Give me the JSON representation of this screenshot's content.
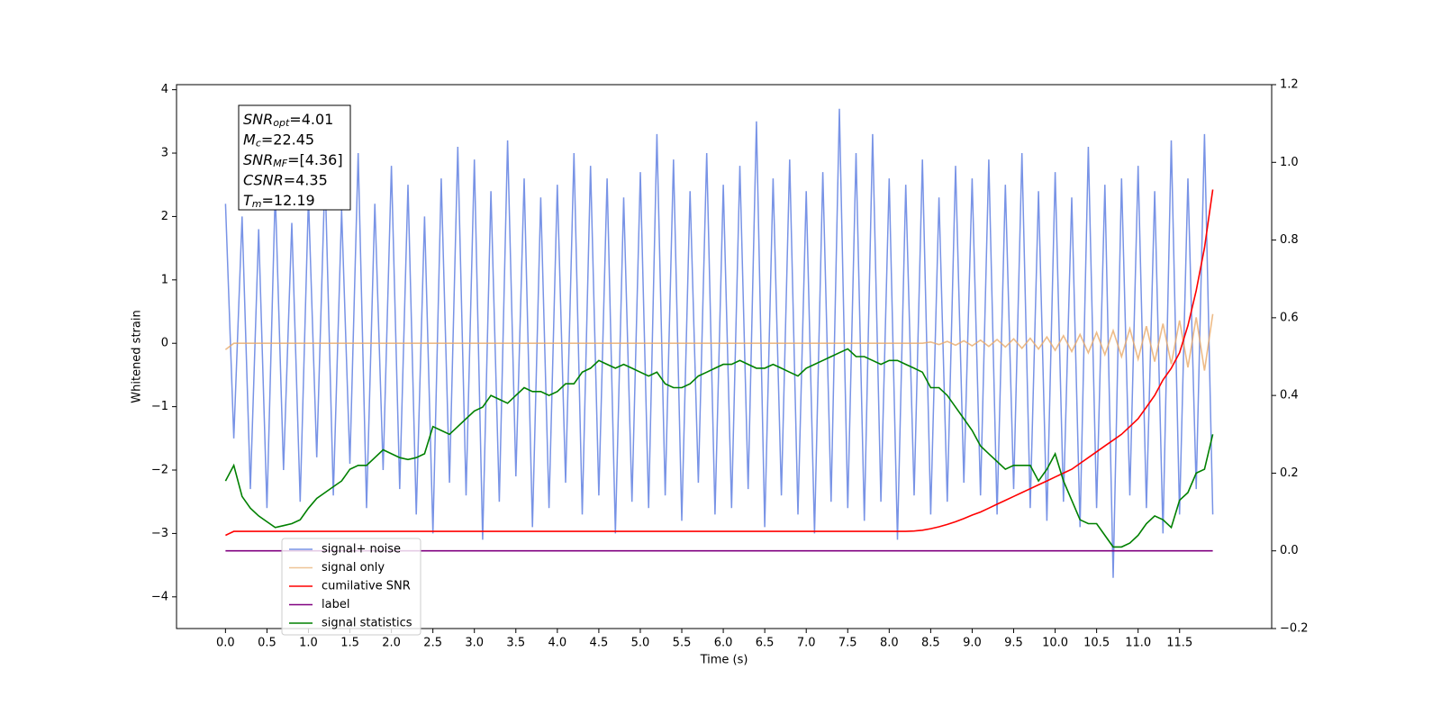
{
  "chart_data": {
    "type": "line",
    "xlabel": "Time (s)",
    "ylabel": "Whitened strain",
    "xlim": [
      -0.59,
      12.61
    ],
    "ylim": [
      -4.5,
      4.08
    ],
    "y2lim": [
      -0.2,
      1.2
    ],
    "xticks": [
      {
        "value": 0,
        "label": "0.0"
      },
      0.5,
      {
        "value": 1,
        "label": "1.0"
      },
      1.5,
      {
        "value": 2,
        "label": "2.0"
      },
      2.5,
      {
        "value": 3,
        "label": "3.0"
      },
      3.5,
      {
        "value": 4,
        "label": "4.0"
      },
      4.5,
      {
        "value": 5,
        "label": "5.0"
      },
      5.5,
      {
        "value": 6,
        "label": "6.0"
      },
      6.5,
      {
        "value": 7,
        "label": "7.0"
      },
      7.5,
      {
        "value": 8,
        "label": "8.0"
      },
      8.5,
      {
        "value": 9,
        "label": "9.0"
      },
      9.5,
      {
        "value": 10,
        "label": "10.0"
      },
      10.5,
      {
        "value": 11,
        "label": "11.0"
      },
      11.5
    ],
    "yticks": [
      4,
      3,
      2,
      1,
      0,
      {
        "value": -1,
        "label": "−1"
      },
      {
        "value": -2,
        "label": "−2"
      },
      {
        "value": -3,
        "label": "−3"
      },
      {
        "value": -4,
        "label": "−4"
      }
    ],
    "y2ticks": [
      1.2,
      {
        "value": 1,
        "label": "1.0"
      },
      0.8,
      0.6,
      0.4,
      0.2,
      {
        "value": 0,
        "label": "0.0"
      },
      {
        "value": -0.2,
        "label": "−0.2"
      }
    ],
    "legend": "lower left",
    "annotation": [
      {
        "name": "SNR",
        "sub": "opt",
        "text": "=4.01"
      },
      {
        "name": "M",
        "sub": "c",
        "text": "=22.45"
      },
      {
        "name": "SNR",
        "sub": "MF",
        "text": "=[4.36]"
      },
      {
        "name": "CSNR",
        "sub": "",
        "text": "=4.35"
      },
      {
        "name": "T",
        "sub": "m",
        "text": "=12.19"
      }
    ],
    "x": [
      0,
      0.1,
      0.2,
      0.3,
      0.4,
      0.5,
      0.6,
      0.7,
      0.8,
      0.9,
      1,
      1.1,
      1.2,
      1.3,
      1.4,
      1.5,
      1.6,
      1.7,
      1.8,
      1.9,
      2,
      2.1,
      2.2,
      2.3,
      2.4,
      2.5,
      2.6,
      2.7,
      2.8,
      2.9,
      3,
      3.1,
      3.2,
      3.3,
      3.4,
      3.5,
      3.6,
      3.7,
      3.8,
      3.9,
      4,
      4.1,
      4.2,
      4.3,
      4.4,
      4.5,
      4.6,
      4.7,
      4.8,
      4.9,
      5,
      5.1,
      5.2,
      5.3,
      5.4,
      5.5,
      5.6,
      5.7,
      5.8,
      5.9,
      6,
      6.1,
      6.2,
      6.3,
      6.4,
      6.5,
      6.6,
      6.7,
      6.8,
      6.9,
      7,
      7.1,
      7.2,
      7.3,
      7.4,
      7.5,
      7.6,
      7.7,
      7.8,
      7.9,
      8,
      8.1,
      8.2,
      8.3,
      8.4,
      8.5,
      8.6,
      8.7,
      8.8,
      8.9,
      9,
      9.1,
      9.2,
      9.3,
      9.4,
      9.5,
      9.6,
      9.7,
      9.8,
      9.9,
      10,
      10.1,
      10.2,
      10.3,
      10.4,
      10.5,
      10.6,
      10.7,
      10.8,
      10.9,
      11,
      11.1,
      11.2,
      11.3,
      11.4,
      11.5,
      11.6,
      11.7,
      11.8,
      11.9
    ],
    "series": [
      {
        "name": "signal+ noise",
        "color": "#7893e6",
        "values": [
          2.2,
          -1.5,
          2.0,
          -2.3,
          1.8,
          -2.6,
          2.4,
          -2.0,
          1.9,
          -2.5,
          2.3,
          -1.8,
          2.7,
          -2.4,
          2.1,
          -1.9,
          3.0,
          -2.6,
          2.2,
          -2.0,
          2.8,
          -2.3,
          2.5,
          -2.7,
          2.0,
          -3.0,
          2.6,
          -2.2,
          3.1,
          -2.4,
          2.9,
          -3.1,
          2.4,
          -2.5,
          3.2,
          -2.1,
          2.6,
          -2.9,
          2.3,
          -2.6,
          2.5,
          -2.2,
          3.0,
          -2.7,
          2.8,
          -2.4,
          2.6,
          -3.0,
          2.3,
          -2.5,
          2.7,
          -2.6,
          3.3,
          -2.4,
          2.9,
          -2.8,
          2.4,
          -2.2,
          3.0,
          -2.7,
          2.5,
          -2.6,
          2.8,
          -2.3,
          3.5,
          -2.9,
          2.6,
          -2.4,
          2.9,
          -2.7,
          2.4,
          -3.0,
          2.7,
          -2.5,
          3.7,
          -2.6,
          3.0,
          -2.8,
          3.3,
          -2.5,
          2.6,
          -3.1,
          2.5,
          -2.4,
          2.9,
          -2.7,
          2.3,
          -2.5,
          2.8,
          -2.2,
          2.6,
          -2.4,
          2.9,
          -2.7,
          2.5,
          -2.3,
          3.0,
          -2.6,
          2.4,
          -2.8,
          2.7,
          -2.5,
          2.3,
          -2.9,
          3.1,
          -2.6,
          2.5,
          -3.7,
          2.6,
          -2.4,
          2.8,
          -2.6,
          2.4,
          -3.0,
          3.2,
          -2.7,
          2.6,
          -2.3,
          3.3,
          -2.7
        ]
      },
      {
        "name": "signal only",
        "color": "#e8aa6a",
        "values": [
          -0.1,
          0,
          0,
          0,
          0,
          0,
          0,
          0,
          0,
          0,
          0,
          0,
          0,
          0,
          0,
          0,
          0,
          0,
          0,
          0,
          0,
          0,
          0,
          0,
          0,
          0,
          0,
          0,
          0,
          0,
          0,
          0,
          0,
          0,
          0,
          0,
          0,
          0,
          0,
          0,
          0,
          0,
          0,
          0,
          0,
          0,
          0,
          0,
          0,
          0,
          0,
          0,
          0,
          0,
          0,
          0,
          0,
          0,
          0,
          0,
          0,
          0,
          0,
          0,
          0,
          0,
          0,
          0,
          0,
          0,
          0,
          0,
          0,
          0,
          0,
          0,
          0,
          0,
          0,
          0,
          0,
          0,
          0,
          0,
          0,
          0.02,
          -0.02,
          0.03,
          -0.03,
          0.04,
          -0.04,
          0.05,
          -0.05,
          0.06,
          -0.06,
          0.07,
          -0.08,
          0.08,
          -0.09,
          0.1,
          -0.11,
          0.12,
          -0.13,
          0.14,
          -0.15,
          0.17,
          -0.18,
          0.2,
          -0.21,
          0.23,
          -0.25,
          0.27,
          -0.29,
          0.31,
          -0.33,
          0.36,
          -0.38,
          0.41,
          -0.43,
          0.46
        ]
      },
      {
        "name": "cumilative SNR",
        "color": "#ff0000",
        "axis": "y2",
        "values": [
          0.04,
          0.05,
          0.05,
          0.05,
          0.05,
          0.05,
          0.05,
          0.05,
          0.05,
          0.05,
          0.05,
          0.05,
          0.05,
          0.05,
          0.05,
          0.05,
          0.05,
          0.05,
          0.05,
          0.05,
          0.05,
          0.05,
          0.05,
          0.05,
          0.05,
          0.05,
          0.05,
          0.05,
          0.05,
          0.05,
          0.05,
          0.05,
          0.05,
          0.05,
          0.05,
          0.05,
          0.05,
          0.05,
          0.05,
          0.05,
          0.05,
          0.05,
          0.05,
          0.05,
          0.05,
          0.05,
          0.05,
          0.05,
          0.05,
          0.05,
          0.05,
          0.05,
          0.05,
          0.05,
          0.05,
          0.05,
          0.05,
          0.05,
          0.05,
          0.05,
          0.05,
          0.05,
          0.05,
          0.05,
          0.05,
          0.05,
          0.05,
          0.05,
          0.05,
          0.05,
          0.05,
          0.05,
          0.05,
          0.05,
          0.05,
          0.05,
          0.05,
          0.05,
          0.05,
          0.05,
          0.05,
          0.05,
          0.05,
          0.051,
          0.053,
          0.057,
          0.062,
          0.068,
          0.075,
          0.083,
          0.092,
          0.1,
          0.11,
          0.12,
          0.13,
          0.14,
          0.15,
          0.16,
          0.17,
          0.18,
          0.19,
          0.2,
          0.21,
          0.225,
          0.24,
          0.255,
          0.27,
          0.285,
          0.3,
          0.32,
          0.34,
          0.37,
          0.4,
          0.44,
          0.47,
          0.51,
          0.58,
          0.67,
          0.78,
          0.93
        ]
      },
      {
        "name": "label",
        "color": "#800080",
        "axis": "y2",
        "values": [
          0,
          0,
          0,
          0,
          0,
          0,
          0,
          0,
          0,
          0,
          0,
          0,
          0,
          0,
          0,
          0,
          0,
          0,
          0,
          0,
          0,
          0,
          0,
          0,
          0,
          0,
          0,
          0,
          0,
          0,
          0,
          0,
          0,
          0,
          0,
          0,
          0,
          0,
          0,
          0,
          0,
          0,
          0,
          0,
          0,
          0,
          0,
          0,
          0,
          0,
          0,
          0,
          0,
          0,
          0,
          0,
          0,
          0,
          0,
          0,
          0,
          0,
          0,
          0,
          0,
          0,
          0,
          0,
          0,
          0,
          0,
          0,
          0,
          0,
          0,
          0,
          0,
          0,
          0,
          0,
          0,
          0,
          0,
          0,
          0,
          0,
          0,
          0,
          0,
          0,
          0,
          0,
          0,
          0,
          0,
          0,
          0,
          0,
          0,
          0,
          0,
          0,
          0,
          0,
          0,
          0,
          0,
          0,
          0,
          0,
          0,
          0,
          0,
          0,
          0,
          0,
          0,
          0,
          0,
          0
        ]
      },
      {
        "name": "signal statistics",
        "color": "#008000",
        "axis": "y2",
        "values": [
          0.18,
          0.22,
          0.14,
          0.11,
          0.09,
          0.075,
          0.06,
          0.065,
          0.07,
          0.08,
          0.11,
          0.135,
          0.15,
          0.165,
          0.18,
          0.21,
          0.22,
          0.22,
          0.24,
          0.26,
          0.25,
          0.24,
          0.235,
          0.24,
          0.25,
          0.32,
          0.31,
          0.3,
          0.32,
          0.34,
          0.36,
          0.37,
          0.4,
          0.39,
          0.38,
          0.4,
          0.42,
          0.41,
          0.41,
          0.4,
          0.41,
          0.43,
          0.43,
          0.46,
          0.47,
          0.49,
          0.48,
          0.47,
          0.48,
          0.47,
          0.46,
          0.45,
          0.46,
          0.43,
          0.42,
          0.42,
          0.43,
          0.45,
          0.46,
          0.47,
          0.48,
          0.48,
          0.49,
          0.48,
          0.47,
          0.47,
          0.48,
          0.47,
          0.46,
          0.45,
          0.47,
          0.48,
          0.49,
          0.5,
          0.51,
          0.52,
          0.5,
          0.5,
          0.49,
          0.48,
          0.49,
          0.49,
          0.48,
          0.47,
          0.46,
          0.42,
          0.42,
          0.4,
          0.37,
          0.34,
          0.31,
          0.27,
          0.25,
          0.23,
          0.21,
          0.22,
          0.22,
          0.22,
          0.18,
          0.21,
          0.25,
          0.18,
          0.13,
          0.08,
          0.07,
          0.07,
          0.04,
          0.01,
          0.01,
          0.02,
          0.04,
          0.07,
          0.09,
          0.08,
          0.06,
          0.13,
          0.15,
          0.2,
          0.21,
          0.3
        ]
      }
    ]
  }
}
